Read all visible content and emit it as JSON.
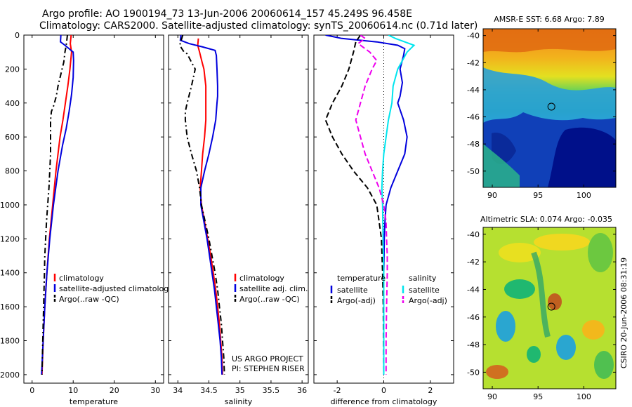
{
  "header": {
    "title_line1": "Argo profile: AO 1900194_73 13-Jun-2006 20060614_157 45.249S 96.458E",
    "title_line2": "Climatology: CARS2000. Satellite-adjusted climatology: synTS_20060614.nc (0.71d later)"
  },
  "credit": {
    "project": "US ARGO PROJECT",
    "pi": "PI: STEPHEN RISER",
    "stamp": "CSIRO 20-Jun-2006 08:31:19"
  },
  "colors": {
    "climatology": "#ff0000",
    "satellite": "#0000dd",
    "argo": "#000000",
    "satellite_salinity": "#00e5ee",
    "argo_salinity": "#ee00ee"
  },
  "chart_data": [
    {
      "id": "temperature",
      "type": "line",
      "xlabel": "temperature",
      "ylabel": "",
      "xlim": [
        -2,
        32
      ],
      "ylim": [
        2050,
        0
      ],
      "xticks": [
        0,
        10,
        20,
        30
      ],
      "yticks": [
        0,
        200,
        400,
        600,
        800,
        1000,
        1200,
        1400,
        1600,
        1800,
        2000
      ],
      "legend": [
        "climatology",
        "satellite-adjusted climatology",
        "Argo(..raw -QC)"
      ],
      "series": [
        {
          "name": "climatology",
          "color": "#ff0000",
          "dash": "",
          "points": [
            [
              9.5,
              0
            ],
            [
              9.3,
              50
            ],
            [
              9.6,
              100
            ],
            [
              9.2,
              200
            ],
            [
              8.7,
              300
            ],
            [
              8.1,
              400
            ],
            [
              7.5,
              500
            ],
            [
              6.8,
              600
            ],
            [
              5.8,
              800
            ],
            [
              5.0,
              1000
            ],
            [
              4.2,
              1200
            ],
            [
              3.6,
              1400
            ],
            [
              3.1,
              1600
            ],
            [
              2.7,
              1800
            ],
            [
              2.4,
              2000
            ]
          ]
        },
        {
          "name": "satellite-adjusted climatology",
          "color": "#0000dd",
          "dash": "",
          "points": [
            [
              7.0,
              0
            ],
            [
              6.9,
              40
            ],
            [
              8.0,
              60
            ],
            [
              10.0,
              100
            ],
            [
              10.1,
              150
            ],
            [
              10.0,
              250
            ],
            [
              9.6,
              350
            ],
            [
              9.0,
              450
            ],
            [
              8.3,
              550
            ],
            [
              7.4,
              650
            ],
            [
              6.3,
              800
            ],
            [
              5.2,
              1000
            ],
            [
              4.3,
              1200
            ],
            [
              3.6,
              1400
            ],
            [
              3.1,
              1600
            ],
            [
              2.7,
              1800
            ],
            [
              2.3,
              2000
            ]
          ]
        },
        {
          "name": "Argo(..raw -QC)",
          "color": "#000000",
          "dash": "8,4,2,4",
          "points": [
            [
              8.6,
              0
            ],
            [
              8.3,
              60
            ],
            [
              8.0,
              100
            ],
            [
              7.7,
              160
            ],
            [
              7.3,
              200
            ],
            [
              6.9,
              240
            ],
            [
              6.3,
              300
            ],
            [
              5.9,
              360
            ],
            [
              5.2,
              420
            ],
            [
              4.7,
              450
            ],
            [
              4.5,
              500
            ],
            [
              4.5,
              600
            ],
            [
              4.5,
              700
            ],
            [
              4.3,
              800
            ],
            [
              4.1,
              900
            ],
            [
              3.8,
              1000
            ],
            [
              3.5,
              1100
            ],
            [
              3.3,
              1200
            ],
            [
              3.1,
              1300
            ],
            [
              3.0,
              1400
            ],
            [
              2.8,
              1600
            ],
            [
              2.6,
              1800
            ],
            [
              2.4,
              2000
            ]
          ]
        }
      ]
    },
    {
      "id": "salinity",
      "type": "line",
      "xlabel": "salinity",
      "ylabel": "",
      "xlim": [
        33.85,
        36.1
      ],
      "ylim": [
        2050,
        0
      ],
      "xticks": [
        34,
        34.5,
        35,
        35.5,
        36
      ],
      "yticks": [
        0,
        200,
        400,
        600,
        800,
        1000,
        1200,
        1400,
        1600,
        1800,
        2000
      ],
      "legend": [
        "climatology",
        "satellite adj. clim.",
        "Argo(..raw -QC)"
      ],
      "annotations": [
        "US ARGO PROJECT",
        "PI: STEPHEN RISER"
      ],
      "series": [
        {
          "name": "climatology",
          "color": "#ff0000",
          "dash": "",
          "points": [
            [
              34.33,
              20
            ],
            [
              34.32,
              60
            ],
            [
              34.35,
              100
            ],
            [
              34.39,
              160
            ],
            [
              34.42,
              200
            ],
            [
              34.45,
              300
            ],
            [
              34.45,
              400
            ],
            [
              34.45,
              500
            ],
            [
              34.43,
              600
            ],
            [
              34.4,
              700
            ],
            [
              34.38,
              800
            ],
            [
              34.36,
              900
            ],
            [
              34.38,
              1000
            ],
            [
              34.43,
              1100
            ],
            [
              34.48,
              1200
            ],
            [
              34.53,
              1300
            ],
            [
              34.57,
              1400
            ],
            [
              34.61,
              1500
            ],
            [
              34.64,
              1600
            ],
            [
              34.67,
              1700
            ],
            [
              34.69,
              1800
            ],
            [
              34.71,
              1900
            ],
            [
              34.72,
              2000
            ]
          ]
        },
        {
          "name": "satellite adj. clim.",
          "color": "#0000dd",
          "dash": "",
          "points": [
            [
              34.05,
              0
            ],
            [
              34.04,
              30
            ],
            [
              34.18,
              50
            ],
            [
              34.4,
              70
            ],
            [
              34.6,
              90
            ],
            [
              34.62,
              120
            ],
            [
              34.63,
              200
            ],
            [
              34.64,
              300
            ],
            [
              34.64,
              360
            ],
            [
              34.63,
              400
            ],
            [
              34.61,
              500
            ],
            [
              34.56,
              600
            ],
            [
              34.5,
              700
            ],
            [
              34.43,
              800
            ],
            [
              34.37,
              900
            ],
            [
              34.37,
              1000
            ],
            [
              34.42,
              1100
            ],
            [
              34.47,
              1200
            ],
            [
              34.51,
              1300
            ],
            [
              34.55,
              1400
            ],
            [
              34.59,
              1500
            ],
            [
              34.62,
              1600
            ],
            [
              34.65,
              1700
            ],
            [
              34.68,
              1800
            ],
            [
              34.7,
              1900
            ],
            [
              34.71,
              2000
            ]
          ]
        },
        {
          "name": "Argo(..raw -QC)",
          "color": "#000000",
          "dash": "8,4,2,4",
          "points": [
            [
              34.08,
              0
            ],
            [
              34.03,
              60
            ],
            [
              34.1,
              100
            ],
            [
              34.15,
              110
            ],
            [
              34.22,
              160
            ],
            [
              34.28,
              200
            ],
            [
              34.22,
              300
            ],
            [
              34.15,
              400
            ],
            [
              34.12,
              450
            ],
            [
              34.12,
              500
            ],
            [
              34.15,
              600
            ],
            [
              34.22,
              700
            ],
            [
              34.3,
              800
            ],
            [
              34.35,
              900
            ],
            [
              34.38,
              1000
            ],
            [
              34.44,
              1100
            ],
            [
              34.5,
              1200
            ],
            [
              34.55,
              1300
            ],
            [
              34.6,
              1400
            ],
            [
              34.64,
              1500
            ],
            [
              34.67,
              1600
            ],
            [
              34.7,
              1700
            ],
            [
              34.72,
              1800
            ],
            [
              34.74,
              1900
            ],
            [
              34.75,
              2000
            ]
          ]
        }
      ]
    },
    {
      "id": "difference",
      "type": "line",
      "xlabel": "difference from climatology",
      "ylabel": "",
      "xlim": [
        -3,
        3
      ],
      "ylim": [
        2050,
        0
      ],
      "xticks": [
        -2,
        0,
        2
      ],
      "yticks": [
        0,
        200,
        400,
        600,
        800,
        1000,
        1200,
        1400,
        1600,
        1800,
        2000
      ],
      "legend_groups": [
        {
          "heading": "temperature",
          "entries": [
            "satellite",
            "Argo(-adj)"
          ]
        },
        {
          "heading": "salinity",
          "entries": [
            "satellite",
            "Argo(-adj)"
          ]
        }
      ],
      "series": [
        {
          "name": "satellite",
          "quantity": "temperature",
          "color": "#0000dd",
          "dash": "",
          "points": [
            [
              -2.5,
              0
            ],
            [
              -1.8,
              20
            ],
            [
              -0.3,
              40
            ],
            [
              0.6,
              60
            ],
            [
              0.9,
              80
            ],
            [
              0.85,
              120
            ],
            [
              0.7,
              200
            ],
            [
              0.8,
              280
            ],
            [
              0.7,
              360
            ],
            [
              0.6,
              400
            ],
            [
              0.85,
              500
            ],
            [
              1.0,
              600
            ],
            [
              0.9,
              700
            ],
            [
              0.6,
              800
            ],
            [
              0.3,
              900
            ],
            [
              0.1,
              1000
            ],
            [
              0.05,
              1100
            ],
            [
              0.02,
              1200
            ],
            [
              0.0,
              1400
            ],
            [
              0.0,
              1600
            ],
            [
              0.0,
              2000
            ]
          ]
        },
        {
          "name": "Argo(-adj)",
          "quantity": "temperature",
          "color": "#000000",
          "dash": "8,4",
          "points": [
            [
              -1.0,
              0
            ],
            [
              -1.2,
              40
            ],
            [
              -1.3,
              100
            ],
            [
              -1.5,
              200
            ],
            [
              -1.8,
              300
            ],
            [
              -2.2,
              400
            ],
            [
              -2.5,
              500
            ],
            [
              -2.2,
              600
            ],
            [
              -1.8,
              700
            ],
            [
              -1.3,
              800
            ],
            [
              -0.7,
              900
            ],
            [
              -0.3,
              1000
            ],
            [
              -0.2,
              1100
            ],
            [
              -0.1,
              1200
            ],
            [
              -0.05,
              1400
            ],
            [
              -0.02,
              1600
            ],
            [
              0.0,
              2000
            ]
          ]
        },
        {
          "name": "satellite",
          "quantity": "salinity",
          "color": "#00e5ee",
          "dash": "",
          "points": [
            [
              0.2,
              0
            ],
            [
              0.5,
              20
            ],
            [
              0.9,
              40
            ],
            [
              1.3,
              60
            ],
            [
              1.15,
              80
            ],
            [
              1.0,
              100
            ],
            [
              0.6,
              200
            ],
            [
              0.4,
              300
            ],
            [
              0.35,
              400
            ],
            [
              0.2,
              500
            ],
            [
              0.1,
              600
            ],
            [
              0.0,
              700
            ],
            [
              -0.05,
              800
            ],
            [
              -0.08,
              900
            ],
            [
              -0.05,
              1000
            ],
            [
              -0.03,
              1200
            ],
            [
              0.0,
              1400
            ],
            [
              0.0,
              2000
            ]
          ]
        },
        {
          "name": "Argo(-adj)",
          "quantity": "salinity",
          "color": "#ee00ee",
          "dash": "8,4",
          "points": [
            [
              -1.0,
              0
            ],
            [
              -0.8,
              20
            ],
            [
              -1.1,
              50
            ],
            [
              -0.6,
              100
            ],
            [
              -0.3,
              150
            ],
            [
              -0.5,
              200
            ],
            [
              -0.8,
              300
            ],
            [
              -1.0,
              400
            ],
            [
              -1.2,
              500
            ],
            [
              -1.0,
              600
            ],
            [
              -0.8,
              700
            ],
            [
              -0.5,
              800
            ],
            [
              -0.2,
              900
            ],
            [
              0.0,
              1000
            ],
            [
              0.1,
              1100
            ],
            [
              0.12,
              1200
            ],
            [
              0.15,
              1300
            ],
            [
              0.15,
              1400
            ],
            [
              0.12,
              1600
            ],
            [
              0.1,
              1800
            ],
            [
              0.1,
              2000
            ]
          ]
        }
      ]
    },
    {
      "id": "sst_map",
      "type": "heatmap",
      "title": "AMSR-E SST: 6.68 Argo: 7.89",
      "xticks": [
        90,
        95,
        100
      ],
      "yticks": [
        -40,
        -42,
        -44,
        -46,
        -48,
        -50
      ],
      "xlim": [
        89,
        103.5
      ],
      "ylim": [
        -51.2,
        -39.5
      ],
      "marker": {
        "lon": 96.458,
        "lat": -45.249
      }
    },
    {
      "id": "sla_map",
      "type": "heatmap",
      "title": "Altimetric SLA: 0.074 Argo: -0.035",
      "xticks": [
        90,
        95,
        100
      ],
      "yticks": [
        -40,
        -42,
        -44,
        -46,
        -48,
        -50
      ],
      "xlim": [
        89,
        103.5
      ],
      "ylim": [
        -51.2,
        -39.5
      ],
      "marker": {
        "lon": 96.458,
        "lat": -45.249
      }
    }
  ]
}
